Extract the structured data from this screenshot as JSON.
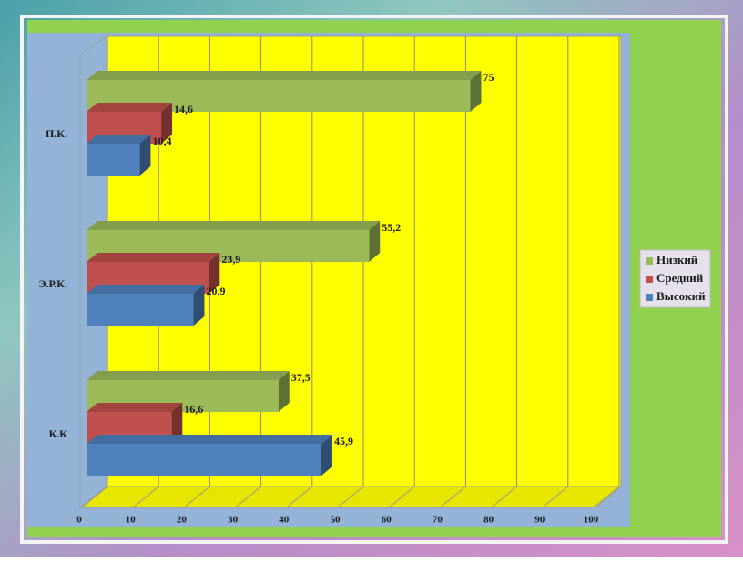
{
  "chart_data": {
    "type": "bar3d-horizontal",
    "categories": [
      "К.К",
      "Э.Р.К.",
      "П.К."
    ],
    "series": [
      {
        "name": "Низкий",
        "color": "#9bbb59",
        "values": [
          37.5,
          55.2,
          75
        ],
        "value_labels": [
          "37,5",
          "55,2",
          "75"
        ]
      },
      {
        "name": "Средний",
        "color": "#c0504d",
        "values": [
          16.6,
          23.9,
          14.6
        ],
        "value_labels": [
          "16,6",
          "23,9",
          "14,6"
        ]
      },
      {
        "name": "Высокий",
        "color": "#4f81bd",
        "values": [
          45.9,
          20.9,
          10.4
        ],
        "value_labels": [
          "45,9",
          "20,9",
          "10,4"
        ]
      }
    ],
    "xlim": [
      0,
      100
    ],
    "xticks": [
      0,
      10,
      20,
      30,
      40,
      50,
      60,
      70,
      80,
      90,
      100
    ],
    "grid": true,
    "legend": "right"
  }
}
